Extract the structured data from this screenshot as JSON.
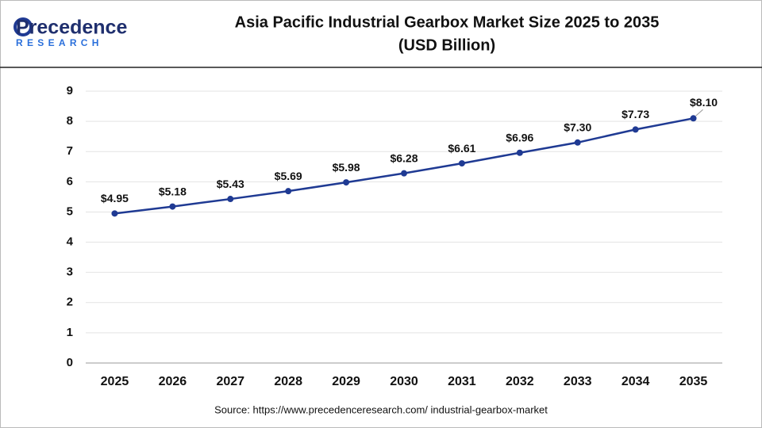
{
  "logo": {
    "name": "Precedence",
    "tagline": "RESEARCH"
  },
  "chart_data": {
    "type": "line",
    "title": "Asia Pacific Industrial Gearbox Market Size 2025 to 2035",
    "subtitle": "(USD Billion)",
    "categories": [
      "2025",
      "2026",
      "2027",
      "2028",
      "2029",
      "2030",
      "2031",
      "2032",
      "2033",
      "2034",
      "2035"
    ],
    "values": [
      4.95,
      5.18,
      5.43,
      5.69,
      5.98,
      6.28,
      6.61,
      6.96,
      7.3,
      7.73,
      8.1
    ],
    "value_labels": [
      "$4.95",
      "$5.18",
      "$5.43",
      "$5.69",
      "$5.98",
      "$6.28",
      "$6.61",
      "$6.96",
      "$7.30",
      "$7.73",
      "$8.10"
    ],
    "color": "#1f3a93",
    "ylim": [
      0,
      9
    ],
    "yticks": [
      0,
      1,
      2,
      3,
      4,
      5,
      6,
      7,
      8,
      9
    ],
    "grid": true,
    "source": "Source: https://www.precedenceresearch.com/ industrial-gearbox-market"
  }
}
